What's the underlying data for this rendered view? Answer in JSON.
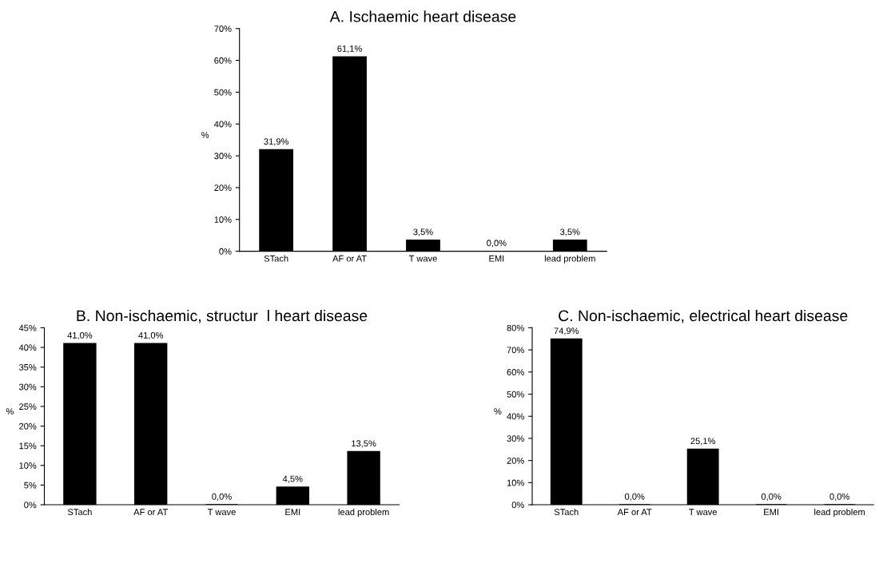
{
  "chart_data": [
    {
      "type": "bar",
      "title": "A. Ischaemic heart disease",
      "ylabel": "%",
      "categories": [
        "STach",
        "AF or AT",
        "T wave",
        "EMI",
        "lead problem"
      ],
      "values": [
        31.9,
        61.1,
        3.5,
        0.0,
        3.5
      ],
      "color": "#000000",
      "value_labels": [
        "31,9%",
        "61,1%",
        "3,5%",
        "0,0%",
        "3,5%"
      ],
      "ylim": [
        0,
        70
      ],
      "yticks": [
        {
          "value": 0,
          "label": "0%"
        },
        {
          "value": 10,
          "label": "10%"
        },
        {
          "value": 20,
          "label": "20%"
        },
        {
          "value": 30,
          "label": "30%"
        },
        {
          "value": 40,
          "label": "40%"
        },
        {
          "value": 50,
          "label": "50%"
        },
        {
          "value": 60,
          "label": "60%"
        },
        {
          "value": 70,
          "label": "70%"
        }
      ],
      "grid": false,
      "legend": false
    },
    {
      "type": "bar",
      "title": "B. Non-ischaemic, structur  l heart disease",
      "ylabel": "%",
      "categories": [
        "STach",
        "AF or AT",
        "T wave",
        "EMI",
        "lead problem"
      ],
      "values": [
        41.0,
        41.0,
        0.0,
        4.5,
        13.5
      ],
      "color": "#000000",
      "value_labels": [
        "41,0%",
        "41,0%",
        "0,0%",
        "4,5%",
        "13,5%"
      ],
      "ylim": [
        0,
        45
      ],
      "yticks": [
        {
          "value": 0,
          "label": "0%"
        },
        {
          "value": 5,
          "label": "5%"
        },
        {
          "value": 10,
          "label": "10%"
        },
        {
          "value": 15,
          "label": "15%"
        },
        {
          "value": 20,
          "label": "20%"
        },
        {
          "value": 25,
          "label": "25%"
        },
        {
          "value": 30,
          "label": "30%"
        },
        {
          "value": 35,
          "label": "35%"
        },
        {
          "value": 40,
          "label": "40%"
        },
        {
          "value": 45,
          "label": "45%"
        }
      ],
      "grid": false,
      "legend": false
    },
    {
      "type": "bar",
      "title": "C. Non-ischaemic, electrical heart disease",
      "ylabel": "%",
      "categories": [
        "STach",
        "AF or AT",
        "T wave",
        "EMI",
        "lead problem"
      ],
      "values": [
        74.9,
        0.0,
        25.1,
        0.0,
        0.0
      ],
      "color": "#000000",
      "value_labels": [
        "74,9%",
        "0,0%",
        "25,1%",
        "0,0%",
        "0,0%"
      ],
      "ylim": [
        0,
        80
      ],
      "yticks": [
        {
          "value": 0,
          "label": "0%"
        },
        {
          "value": 10,
          "label": "10%"
        },
        {
          "value": 20,
          "label": "20%"
        },
        {
          "value": 30,
          "label": "30%"
        },
        {
          "value": 40,
          "label": "40%"
        },
        {
          "value": 50,
          "label": "50%"
        },
        {
          "value": 60,
          "label": "60%"
        },
        {
          "value": 70,
          "label": "70%"
        },
        {
          "value": 80,
          "label": "80%"
        }
      ],
      "grid": false,
      "legend": false
    }
  ]
}
